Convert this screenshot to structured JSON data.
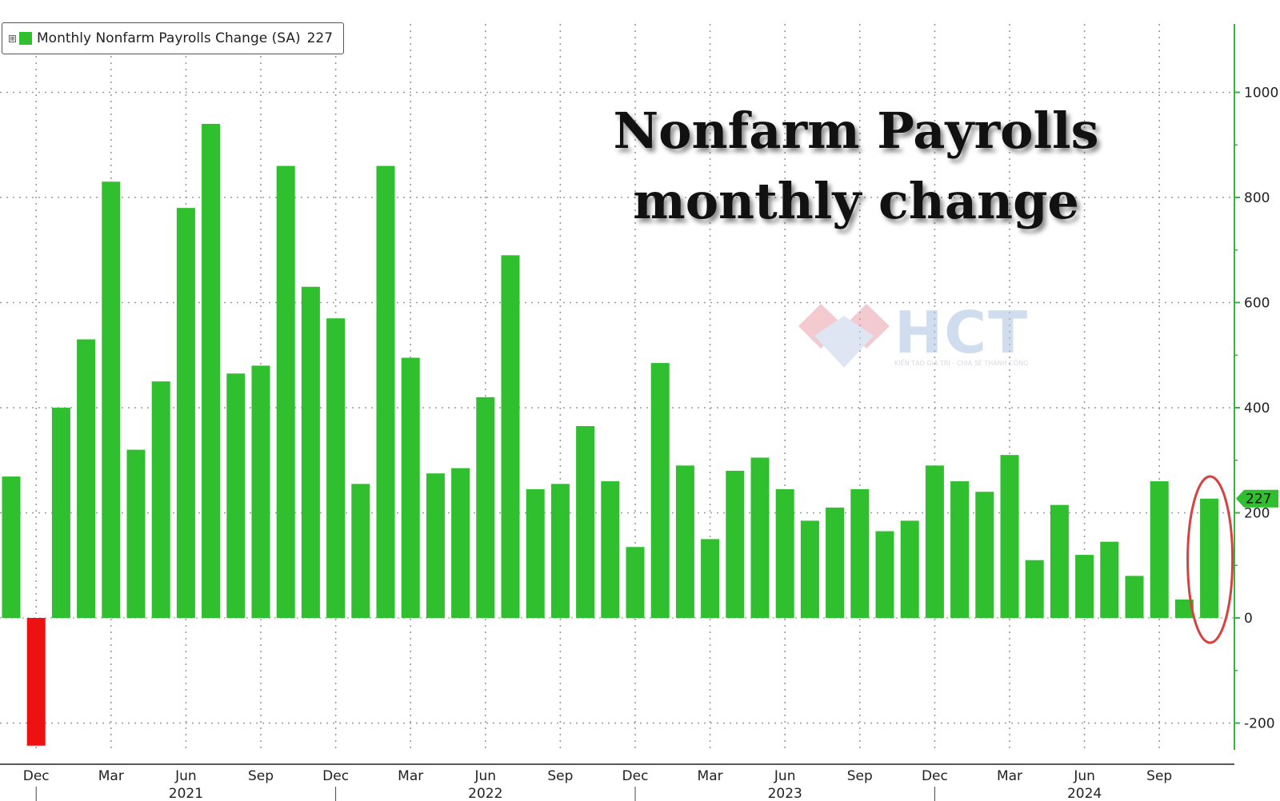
{
  "legend": {
    "toggle": "⊞",
    "label": "Monthly Nonfarm Payrolls Change (SA)",
    "value": "227"
  },
  "title": {
    "line1": "Nonfarm Payrolls",
    "line2": "monthly change"
  },
  "watermark": {
    "brand": "HCT",
    "tagline": "KIẾN TẠO GIÁ TRỊ - CHIA SẺ THÀNH CÔNG"
  },
  "colors": {
    "positive": "#2fbf2f",
    "negative": "#ee1111",
    "highlight_ring": "#d94040",
    "axis": "#3cb043",
    "grid": "#9a9a9a"
  },
  "chart_data": {
    "type": "bar",
    "title": "Nonfarm Payrolls monthly change",
    "series": [
      {
        "name": "Monthly Nonfarm Payrolls Change (SA)",
        "values": [
          269,
          -243,
          400,
          530,
          830,
          320,
          450,
          780,
          940,
          465,
          480,
          860,
          630,
          570,
          255,
          860,
          495,
          275,
          285,
          420,
          690,
          245,
          255,
          365,
          260,
          135,
          485,
          290,
          150,
          280,
          305,
          245,
          185,
          210,
          245,
          165,
          185,
          290,
          260,
          240,
          310,
          110,
          215,
          120,
          145,
          80,
          260,
          35,
          227
        ]
      }
    ],
    "x_start": "2020-11",
    "x_end": "2024-11",
    "x_tick_labels": [
      "Dec",
      "Mar",
      "Jun",
      "Sep",
      "Dec",
      "Mar",
      "Jun",
      "Sep",
      "Dec",
      "Mar",
      "Jun",
      "Sep",
      "Dec",
      "Mar",
      "Jun",
      "Sep"
    ],
    "year_labels": [
      "2021",
      "2022",
      "2023",
      "2024"
    ],
    "y_ticks": [
      "-200",
      "0",
      "200",
      "400",
      "600",
      "800",
      "1000"
    ],
    "ylim": [
      -280,
      1150
    ],
    "last_value_label": "227",
    "highlighted_point": "2024-11",
    "grid": true,
    "y_axis_side": "right",
    "legend_position": "top-left"
  }
}
